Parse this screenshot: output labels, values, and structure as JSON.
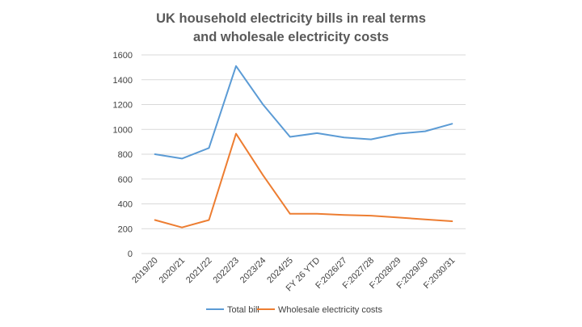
{
  "chart_data": {
    "type": "line",
    "title_lines": [
      "UK household electricity bills in real terms",
      "and wholesale electricity costs"
    ],
    "categories": [
      "2019/20",
      "2020/21",
      "2021/22",
      "2022/23",
      "2023/24",
      "2024/25",
      "FY 26 YTD",
      "F:2026/27",
      "F:2027/28",
      "F:2028/29",
      "F:2029/30",
      "F:2030/31"
    ],
    "series": [
      {
        "name": "Total bill",
        "color": "#5b9bd5",
        "values": [
          800,
          765,
          850,
          1510,
          1200,
          940,
          970,
          935,
          920,
          965,
          985,
          1045
        ]
      },
      {
        "name": "Wholesale electricity costs",
        "color": "#ed7d31",
        "values": [
          270,
          210,
          270,
          965,
          630,
          320,
          320,
          310,
          305,
          290,
          275,
          260
        ]
      }
    ],
    "yticks": [
      0,
      200,
      400,
      600,
      800,
      1000,
      1200,
      1400,
      1600
    ],
    "ylim": [
      0,
      1600
    ],
    "grid": true,
    "legend_position": "bottom",
    "xlabel": "",
    "ylabel": ""
  }
}
